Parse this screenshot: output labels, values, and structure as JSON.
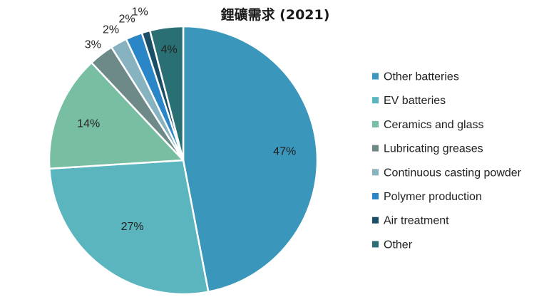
{
  "chart_data": {
    "type": "pie",
    "title": "鋰礦需求 (2021)",
    "slices": [
      {
        "label": "Other batteries",
        "value": 47,
        "display": "47%",
        "color": "#3a96bb"
      },
      {
        "label": "EV batteries",
        "value": 27,
        "display": "27%",
        "color": "#5ab5be"
      },
      {
        "label": "Ceramics and glass",
        "value": 14,
        "display": "14%",
        "color": "#77bea2"
      },
      {
        "label": "Lubricating greases",
        "value": 3,
        "display": "3%",
        "color": "#6d8a89"
      },
      {
        "label": "Continuous casting powder",
        "value": 2,
        "display": "2%",
        "color": "#87b2c0"
      },
      {
        "label": "Polymer production",
        "value": 2,
        "display": "2%",
        "color": "#2a86c6"
      },
      {
        "label": "Air treatment",
        "value": 1,
        "display": "1%",
        "color": "#1b4f68"
      },
      {
        "label": "Other",
        "value": 4,
        "display": "4%",
        "color": "#2a6f73"
      }
    ],
    "start_angle_deg": 0,
    "direction": "clockwise",
    "legend_position": "right",
    "show_percent_labels": true
  }
}
